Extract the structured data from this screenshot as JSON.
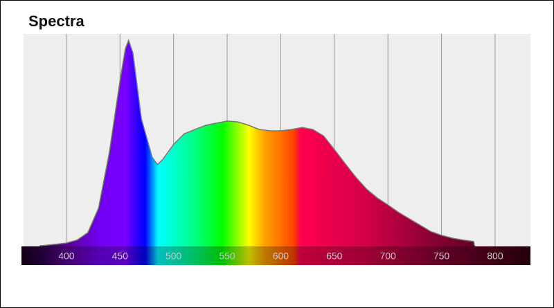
{
  "chart_data": {
    "type": "area",
    "title": "Spectra",
    "x": [
      375,
      380,
      390,
      400,
      410,
      420,
      430,
      440,
      450,
      455,
      458,
      462,
      470,
      480,
      485,
      490,
      500,
      510,
      520,
      530,
      540,
      550,
      560,
      570,
      580,
      590,
      600,
      610,
      620,
      630,
      640,
      650,
      660,
      670,
      680,
      690,
      700,
      710,
      720,
      730,
      740,
      750,
      760,
      770,
      780,
      781
    ],
    "values": [
      0.003,
      0.005,
      0.01,
      0.016,
      0.03,
      0.065,
      0.18,
      0.44,
      0.78,
      0.93,
      0.97,
      0.91,
      0.6,
      0.42,
      0.385,
      0.41,
      0.48,
      0.53,
      0.55,
      0.57,
      0.58,
      0.59,
      0.586,
      0.57,
      0.55,
      0.544,
      0.544,
      0.55,
      0.56,
      0.55,
      0.52,
      0.456,
      0.39,
      0.326,
      0.27,
      0.228,
      0.195,
      0.16,
      0.13,
      0.1,
      0.07,
      0.052,
      0.039,
      0.03,
      0.023,
      0
    ],
    "xlim": [
      360,
      833
    ],
    "ylim": [
      0,
      1
    ],
    "xticks": [
      400,
      450,
      500,
      550,
      600,
      650,
      700,
      750,
      800
    ],
    "grid": true,
    "line_color": "#777777"
  }
}
